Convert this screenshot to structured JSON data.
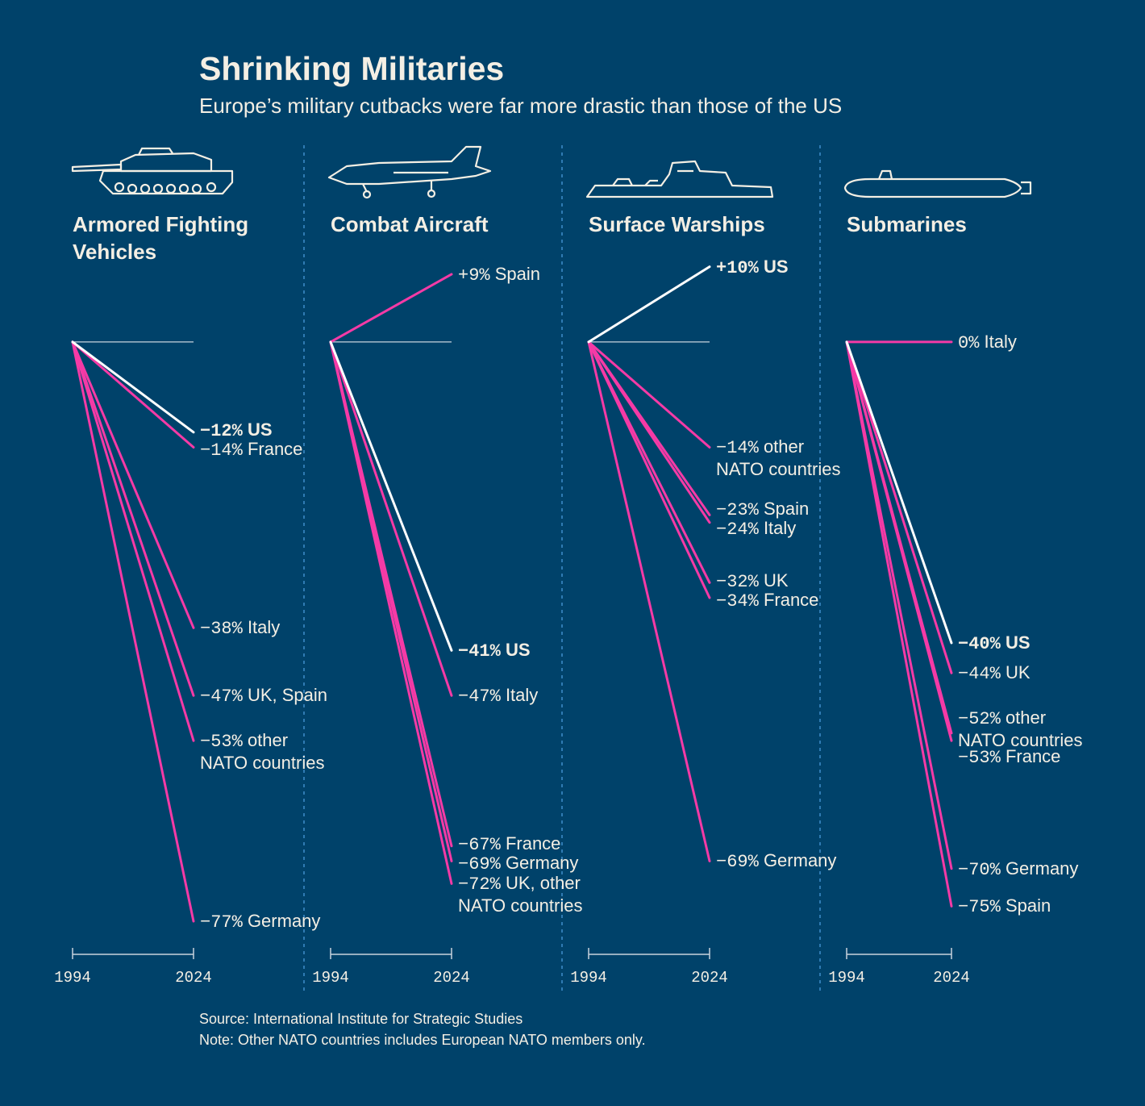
{
  "title": "Shrinking Militaries",
  "subtitle": "Europe’s military cutbacks were far more drastic than those of the US",
  "source": "Source: International Institute for Strategic Studies",
  "note": "Note: Other NATO countries includes European NATO members only.",
  "chart_data": [
    {
      "type": "slope",
      "title": "Armored Fighting Vehicles",
      "x": [
        1994,
        2024
      ],
      "ylim": [
        -80,
        15
      ],
      "series": [
        {
          "name": "US",
          "color": "#ffffff",
          "values": [
            0,
            -12
          ],
          "value_labels": [
            null,
            "−12%"
          ]
        },
        {
          "name": "France",
          "color": "#f53aa6",
          "values": [
            0,
            -14
          ],
          "value_labels": [
            null,
            "−14%"
          ]
        },
        {
          "name": "Italy",
          "color": "#f53aa6",
          "values": [
            0,
            -38
          ],
          "value_labels": [
            null,
            "−38%"
          ]
        },
        {
          "name": "UK, Spain",
          "color": "#f53aa6",
          "values": [
            0,
            -47
          ],
          "value_labels": [
            null,
            "−47%"
          ]
        },
        {
          "name": "other NATO countries",
          "color": "#f53aa6",
          "values": [
            0,
            -53
          ],
          "value_labels": [
            null,
            "−53%"
          ]
        },
        {
          "name": "Germany",
          "color": "#f53aa6",
          "values": [
            0,
            -77
          ],
          "value_labels": [
            null,
            "−77%"
          ]
        }
      ]
    },
    {
      "type": "slope",
      "title": "Combat Aircraft",
      "x": [
        1994,
        2024
      ],
      "ylim": [
        -80,
        15
      ],
      "series": [
        {
          "name": "Spain",
          "color": "#f53aa6",
          "values": [
            0,
            9
          ],
          "value_labels": [
            null,
            "+9%"
          ]
        },
        {
          "name": "US",
          "color": "#ffffff",
          "values": [
            0,
            -41
          ],
          "value_labels": [
            null,
            "−41%"
          ]
        },
        {
          "name": "Italy",
          "color": "#f53aa6",
          "values": [
            0,
            -47
          ],
          "value_labels": [
            null,
            "−47%"
          ]
        },
        {
          "name": "France",
          "color": "#f53aa6",
          "values": [
            0,
            -67
          ],
          "value_labels": [
            null,
            "−67%"
          ]
        },
        {
          "name": "Germany",
          "color": "#f53aa6",
          "values": [
            0,
            -69
          ],
          "value_labels": [
            null,
            "−69%"
          ]
        },
        {
          "name": "UK, other NATO countries",
          "color": "#f53aa6",
          "values": [
            0,
            -72
          ],
          "value_labels": [
            null,
            "−72%"
          ]
        }
      ]
    },
    {
      "type": "slope",
      "title": "Surface Warships",
      "x": [
        1994,
        2024
      ],
      "ylim": [
        -80,
        15
      ],
      "series": [
        {
          "name": "US",
          "color": "#ffffff",
          "values": [
            0,
            10
          ],
          "value_labels": [
            null,
            "+10%"
          ]
        },
        {
          "name": "other NATO countries",
          "color": "#f53aa6",
          "values": [
            0,
            -14
          ],
          "value_labels": [
            null,
            "−14%"
          ]
        },
        {
          "name": "Spain",
          "color": "#f53aa6",
          "values": [
            0,
            -23
          ],
          "value_labels": [
            null,
            "−23%"
          ]
        },
        {
          "name": "Italy",
          "color": "#f53aa6",
          "values": [
            0,
            -24
          ],
          "value_labels": [
            null,
            "−24%"
          ]
        },
        {
          "name": "UK",
          "color": "#f53aa6",
          "values": [
            0,
            -32
          ],
          "value_labels": [
            null,
            "−32%"
          ]
        },
        {
          "name": "France",
          "color": "#f53aa6",
          "values": [
            0,
            -34
          ],
          "value_labels": [
            null,
            "−34%"
          ]
        },
        {
          "name": "Germany",
          "color": "#f53aa6",
          "values": [
            0,
            -69
          ],
          "value_labels": [
            null,
            "−69%"
          ]
        }
      ]
    },
    {
      "type": "slope",
      "title": "Submarines",
      "x": [
        1994,
        2024
      ],
      "ylim": [
        -80,
        15
      ],
      "series": [
        {
          "name": "Italy",
          "color": "#f53aa6",
          "values": [
            0,
            0
          ],
          "value_labels": [
            null,
            "0%"
          ]
        },
        {
          "name": "US",
          "color": "#ffffff",
          "values": [
            0,
            -40
          ],
          "value_labels": [
            null,
            "−40%"
          ]
        },
        {
          "name": "UK",
          "color": "#f53aa6",
          "values": [
            0,
            -44
          ],
          "value_labels": [
            null,
            "−44%"
          ]
        },
        {
          "name": "other NATO countries",
          "color": "#f53aa6",
          "values": [
            0,
            -52
          ],
          "value_labels": [
            null,
            "−52%"
          ]
        },
        {
          "name": "France",
          "color": "#f53aa6",
          "values": [
            0,
            -53
          ],
          "value_labels": [
            null,
            "−53%"
          ]
        },
        {
          "name": "Germany",
          "color": "#f53aa6",
          "values": [
            0,
            -70
          ],
          "value_labels": [
            null,
            "−70%"
          ]
        },
        {
          "name": "Spain",
          "color": "#f53aa6",
          "values": [
            0,
            -75
          ],
          "value_labels": [
            null,
            "−75%"
          ]
        }
      ]
    }
  ]
}
